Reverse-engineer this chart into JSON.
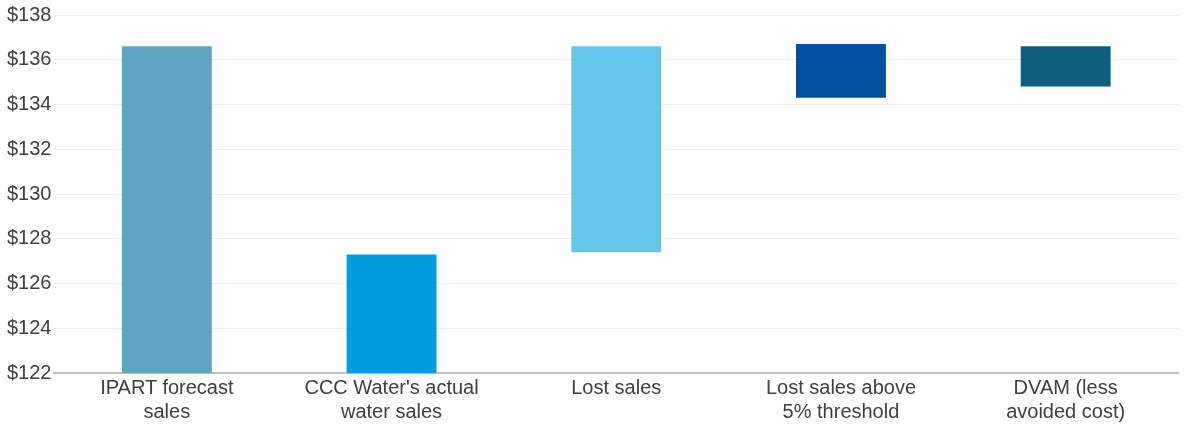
{
  "chart_data": {
    "type": "bar",
    "categories": [
      "IPART forecast sales",
      "CCC Water's actual water sales",
      "Lost sales",
      "Lost sales above 5% threshold",
      "DVAM (less avoided cost)"
    ],
    "values": [
      14.6,
      5.3,
      9.2,
      2.4,
      1.8
    ],
    "base": [
      122,
      122,
      127.4,
      134.3,
      134.8
    ],
    "colors": [
      "#5ea5c2",
      "#009ddc",
      "#66c6ea",
      "#0051a0",
      "#0e5f7e"
    ],
    "ylim": [
      122,
      138
    ],
    "yticks": [
      {
        "value": 122,
        "label": "$122"
      },
      {
        "value": 124,
        "label": "$124"
      },
      {
        "value": 126,
        "label": "$126"
      },
      {
        "value": 128,
        "label": "$128"
      },
      {
        "value": 130,
        "label": "$130"
      },
      {
        "value": 132,
        "label": "$132"
      },
      {
        "value": 134,
        "label": "$134"
      },
      {
        "value": 136,
        "label": "$136"
      },
      {
        "value": 138,
        "label": "$138"
      }
    ],
    "grid": "y",
    "legend": false
  }
}
